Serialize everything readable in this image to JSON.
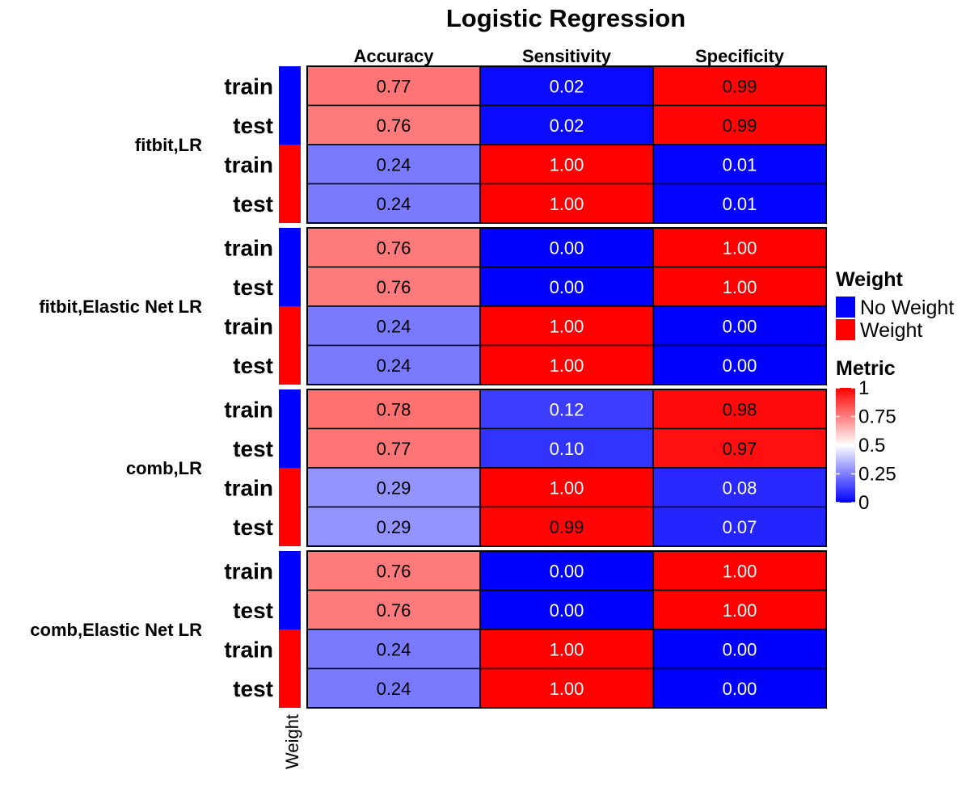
{
  "chart_data": {
    "type": "heatmap",
    "title": "Logistic Regression",
    "columns": [
      "Accuracy",
      "Sensitivity",
      "Specificity"
    ],
    "groups": [
      {
        "name": "fitbit,LR",
        "rows": [
          {
            "label": "train",
            "weight": "No Weight",
            "values": [
              0.77,
              0.02,
              0.99
            ]
          },
          {
            "label": "test",
            "weight": "No Weight",
            "values": [
              0.76,
              0.02,
              0.99
            ]
          },
          {
            "label": "train",
            "weight": "Weight",
            "values": [
              0.24,
              1.0,
              0.01
            ]
          },
          {
            "label": "test",
            "weight": "Weight",
            "values": [
              0.24,
              1.0,
              0.01
            ]
          }
        ]
      },
      {
        "name": "fitbit,Elastic Net LR",
        "rows": [
          {
            "label": "train",
            "weight": "No Weight",
            "values": [
              0.76,
              0.0,
              1.0
            ]
          },
          {
            "label": "test",
            "weight": "No Weight",
            "values": [
              0.76,
              0.0,
              1.0
            ]
          },
          {
            "label": "train",
            "weight": "Weight",
            "values": [
              0.24,
              1.0,
              0.0
            ]
          },
          {
            "label": "test",
            "weight": "Weight",
            "values": [
              0.24,
              1.0,
              0.0
            ]
          }
        ]
      },
      {
        "name": "comb,LR",
        "rows": [
          {
            "label": "train",
            "weight": "No Weight",
            "values": [
              0.78,
              0.12,
              0.98
            ]
          },
          {
            "label": "test",
            "weight": "No Weight",
            "values": [
              0.77,
              0.1,
              0.97
            ]
          },
          {
            "label": "train",
            "weight": "Weight",
            "values": [
              0.29,
              1.0,
              0.08
            ]
          },
          {
            "label": "test",
            "weight": "Weight",
            "values": [
              0.29,
              0.99,
              0.07
            ]
          }
        ]
      },
      {
        "name": "comb,Elastic Net LR",
        "rows": [
          {
            "label": "train",
            "weight": "No Weight",
            "values": [
              0.76,
              0.0,
              1.0
            ]
          },
          {
            "label": "test",
            "weight": "No Weight",
            "values": [
              0.76,
              0.0,
              1.0
            ]
          },
          {
            "label": "train",
            "weight": "Weight",
            "values": [
              0.24,
              1.0,
              0.0
            ]
          },
          {
            "label": "test",
            "weight": "Weight",
            "values": [
              0.24,
              1.0,
              0.0
            ]
          }
        ]
      }
    ],
    "annotation": {
      "label": "Weight",
      "legend_title": "Weight",
      "levels": [
        {
          "name": "No Weight",
          "color": "#0000ff"
        },
        {
          "name": "Weight",
          "color": "#ff0000"
        }
      ]
    },
    "color_scale": {
      "title": "Metric",
      "stops": [
        {
          "value": 0,
          "color": "#0000ff"
        },
        {
          "value": 0.5,
          "color": "#ffffff"
        },
        {
          "value": 1,
          "color": "#ff0000"
        }
      ],
      "ticks": [
        "0",
        "0.25",
        "0.5",
        "0.75",
        "1"
      ],
      "range": [
        0,
        1
      ]
    },
    "value_format": "2 decimals",
    "legend_position": "right"
  }
}
